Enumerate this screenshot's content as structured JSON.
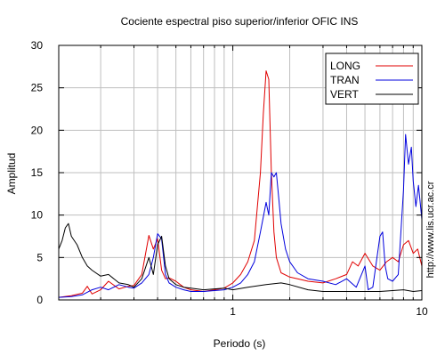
{
  "chart_data": {
    "type": "line",
    "title": "Cociente espectral piso superior/inferior  OFIC INS",
    "xlabel": "Periodo (s)",
    "ylabel": "Amplitud",
    "x_scale": "log",
    "xlim": [
      0.12,
      10
    ],
    "ylim": [
      0,
      30
    ],
    "y_ticks": [
      0,
      5,
      10,
      15,
      20,
      25,
      30
    ],
    "x_tick_labels": [
      {
        "value": 1,
        "label": "1"
      },
      {
        "value": 10,
        "label": "10"
      }
    ],
    "grid": true,
    "legend_position": "top-right",
    "watermark": "http://www.lis.ucr.ac.cr",
    "series": [
      {
        "name": "LONG",
        "color": "#e00000",
        "x": [
          0.12,
          0.14,
          0.16,
          0.17,
          0.18,
          0.2,
          0.22,
          0.25,
          0.28,
          0.3,
          0.33,
          0.36,
          0.38,
          0.4,
          0.42,
          0.44,
          0.46,
          0.5,
          0.55,
          0.6,
          0.7,
          0.8,
          0.9,
          1.0,
          1.1,
          1.2,
          1.3,
          1.4,
          1.45,
          1.5,
          1.55,
          1.6,
          1.65,
          1.7,
          1.8,
          2.0,
          2.2,
          2.5,
          3.0,
          3.5,
          4.0,
          4.3,
          4.6,
          5.0,
          5.5,
          6.0,
          6.5,
          7.0,
          7.5,
          8.0,
          8.5,
          9.0,
          9.5,
          10.0
        ],
        "y": [
          0.3,
          0.5,
          0.8,
          1.6,
          0.7,
          1.2,
          2.2,
          1.3,
          1.6,
          1.7,
          3.0,
          7.6,
          6.0,
          7.2,
          3.5,
          2.5,
          2.6,
          2.2,
          1.5,
          1.2,
          1.0,
          1.2,
          1.4,
          2.0,
          3.0,
          4.5,
          7.0,
          15.0,
          22.0,
          27.0,
          26.0,
          15.0,
          8.0,
          5.0,
          3.2,
          2.7,
          2.5,
          2.2,
          2.0,
          2.5,
          3.0,
          4.5,
          4.0,
          5.5,
          4.0,
          3.5,
          4.5,
          5.0,
          4.5,
          6.5,
          7.0,
          5.5,
          6.0,
          4.0
        ]
      },
      {
        "name": "TRAN",
        "color": "#0000dd",
        "x": [
          0.12,
          0.14,
          0.16,
          0.18,
          0.2,
          0.22,
          0.25,
          0.28,
          0.3,
          0.33,
          0.36,
          0.38,
          0.4,
          0.42,
          0.44,
          0.46,
          0.5,
          0.55,
          0.6,
          0.7,
          0.8,
          0.9,
          1.0,
          1.1,
          1.2,
          1.3,
          1.4,
          1.5,
          1.55,
          1.6,
          1.65,
          1.7,
          1.75,
          1.8,
          1.9,
          2.0,
          2.2,
          2.5,
          3.0,
          3.5,
          4.0,
          4.5,
          5.0,
          5.2,
          5.5,
          6.0,
          6.2,
          6.4,
          6.6,
          7.0,
          7.5,
          8.0,
          8.2,
          8.5,
          8.8,
          9.0,
          9.3,
          9.6,
          10.0
        ],
        "y": [
          0.3,
          0.4,
          0.6,
          1.2,
          1.5,
          1.2,
          1.8,
          1.5,
          1.4,
          2.0,
          3.0,
          5.0,
          7.8,
          7.2,
          3.0,
          2.0,
          1.5,
          1.2,
          1.0,
          1.0,
          1.1,
          1.2,
          1.5,
          2.0,
          3.0,
          4.5,
          8.0,
          11.5,
          10.0,
          15.0,
          14.5,
          15.0,
          12.0,
          9.0,
          6.0,
          4.5,
          3.2,
          2.5,
          2.2,
          1.8,
          2.5,
          1.5,
          4.0,
          1.2,
          1.5,
          7.5,
          8.0,
          4.0,
          2.5,
          2.2,
          3.0,
          13.0,
          19.5,
          16.0,
          18.0,
          14.0,
          11.0,
          13.5,
          9.5
        ]
      },
      {
        "name": "VERT",
        "color": "#000000",
        "x": [
          0.12,
          0.125,
          0.13,
          0.135,
          0.14,
          0.15,
          0.16,
          0.17,
          0.18,
          0.2,
          0.22,
          0.25,
          0.28,
          0.3,
          0.33,
          0.36,
          0.38,
          0.4,
          0.42,
          0.44,
          0.46,
          0.5,
          0.55,
          0.6,
          0.7,
          0.8,
          0.9,
          1.0,
          1.2,
          1.5,
          1.8,
          2.0,
          2.5,
          3.0,
          4.0,
          5.0,
          6.0,
          7.0,
          8.0,
          9.0,
          10.0
        ],
        "y": [
          6.0,
          7.0,
          8.5,
          9.0,
          7.5,
          6.5,
          5.0,
          4.0,
          3.5,
          2.8,
          3.0,
          2.0,
          1.8,
          1.5,
          2.5,
          5.0,
          3.0,
          6.5,
          7.5,
          4.0,
          2.5,
          1.8,
          1.5,
          1.4,
          1.2,
          1.3,
          1.4,
          1.2,
          1.5,
          1.8,
          2.0,
          1.8,
          1.2,
          1.0,
          1.0,
          1.0,
          1.0,
          1.1,
          1.2,
          1.0,
          1.1
        ]
      }
    ]
  }
}
